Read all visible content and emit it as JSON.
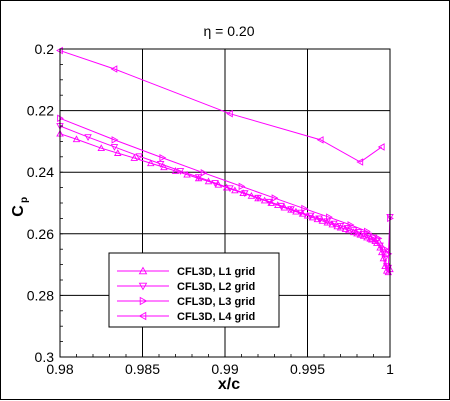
{
  "chart_data": {
    "type": "line",
    "title": "η = 0.20",
    "xlabel": "x/c",
    "ylabel": "C",
    "ylabel_subscript": "p",
    "xlim": [
      0.98,
      1.0
    ],
    "ylim": [
      0.3,
      0.2
    ],
    "y_inverted": true,
    "grid": true,
    "legend_position": "lower-left",
    "xticks": [
      "0.98",
      "0.985",
      "0.99",
      "0.995",
      "1"
    ],
    "xtick_values": [
      0.98,
      0.985,
      0.99,
      0.995,
      1.0
    ],
    "yticks": [
      "0.2",
      "0.22",
      "0.24",
      "0.26",
      "0.28",
      "0.3"
    ],
    "ytick_values": [
      0.2,
      0.22,
      0.24,
      0.26,
      0.28,
      0.3
    ],
    "line_color": "#ff00ff",
    "series": [
      {
        "name": "CFL3D, L1 grid",
        "marker": "triangle-up",
        "x": [
          0.98,
          0.981,
          0.9825,
          0.9835,
          0.9845,
          0.9855,
          0.9863,
          0.987,
          0.9877,
          0.9884,
          0.989,
          0.9896,
          0.9901,
          0.9906,
          0.9911,
          0.9916,
          0.992,
          0.9924,
          0.9928,
          0.9932,
          0.9936,
          0.994,
          0.9943,
          0.9947,
          0.995,
          0.9953,
          0.9956,
          0.9959,
          0.9962,
          0.9965,
          0.9968,
          0.997,
          0.9973,
          0.9975,
          0.9978,
          0.998,
          0.9982,
          0.9984,
          0.9986,
          0.9988,
          0.9989,
          0.9991,
          0.9992,
          0.9994,
          0.9995,
          0.9996,
          0.9997,
          0.9998,
          0.9999,
          1.0
        ],
        "y": [
          0.2275,
          0.2293,
          0.2322,
          0.2338,
          0.2354,
          0.2371,
          0.2384,
          0.2396,
          0.2408,
          0.242,
          0.243,
          0.2441,
          0.245,
          0.2459,
          0.2468,
          0.2477,
          0.2485,
          0.2492,
          0.25,
          0.2507,
          0.2515,
          0.2522,
          0.2528,
          0.2535,
          0.2541,
          0.2547,
          0.2553,
          0.2558,
          0.2564,
          0.257,
          0.2576,
          0.258,
          0.2585,
          0.2589,
          0.2595,
          0.2599,
          0.2603,
          0.2607,
          0.2612,
          0.2616,
          0.2619,
          0.2624,
          0.263,
          0.2645,
          0.266,
          0.268,
          0.2705,
          0.272,
          0.2725,
          0.2715
        ]
      },
      {
        "name": "CFL3D, L2 grid",
        "marker": "triangle-down",
        "x": [
          0.98,
          0.9817,
          0.9833,
          0.9848,
          0.9861,
          0.9873,
          0.9884,
          0.9894,
          0.9903,
          0.9912,
          0.992,
          0.9927,
          0.9934,
          0.994,
          0.9946,
          0.9952,
          0.9957,
          0.9962,
          0.9966,
          0.997,
          0.9974,
          0.9978,
          0.9981,
          0.9984,
          0.9987,
          0.999,
          0.9992,
          0.9994,
          0.9996,
          0.9997,
          0.9998,
          0.9999,
          1.0
        ],
        "y": [
          0.225,
          0.2286,
          0.2318,
          0.2348,
          0.2373,
          0.2396,
          0.2416,
          0.2435,
          0.2452,
          0.2468,
          0.2483,
          0.2496,
          0.2509,
          0.252,
          0.2531,
          0.2541,
          0.255,
          0.2559,
          0.2567,
          0.2574,
          0.2581,
          0.2588,
          0.2594,
          0.26,
          0.2606,
          0.2612,
          0.2622,
          0.2638,
          0.266,
          0.268,
          0.2705,
          0.271,
          0.2545
        ]
      },
      {
        "name": "CFL3D, L3 grid",
        "marker": "triangle-right",
        "x": [
          0.98,
          0.9833,
          0.9862,
          0.9887,
          0.991,
          0.993,
          0.9948,
          0.9963,
          0.9976,
          0.9986,
          0.9993,
          0.9997,
          0.9999,
          1.0
        ],
        "y": [
          0.2225,
          0.2295,
          0.2353,
          0.2402,
          0.2446,
          0.2484,
          0.2518,
          0.2546,
          0.2571,
          0.2592,
          0.2615,
          0.265,
          0.2665,
          0.255
        ]
      },
      {
        "name": "CFL3D, L4 grid",
        "marker": "triangle-left",
        "x": [
          0.98,
          0.9833,
          0.9903,
          0.9958,
          0.9982,
          0.9995
        ],
        "y": [
          0.2005,
          0.2065,
          0.221,
          0.2295,
          0.2367,
          0.2318
        ]
      }
    ]
  }
}
